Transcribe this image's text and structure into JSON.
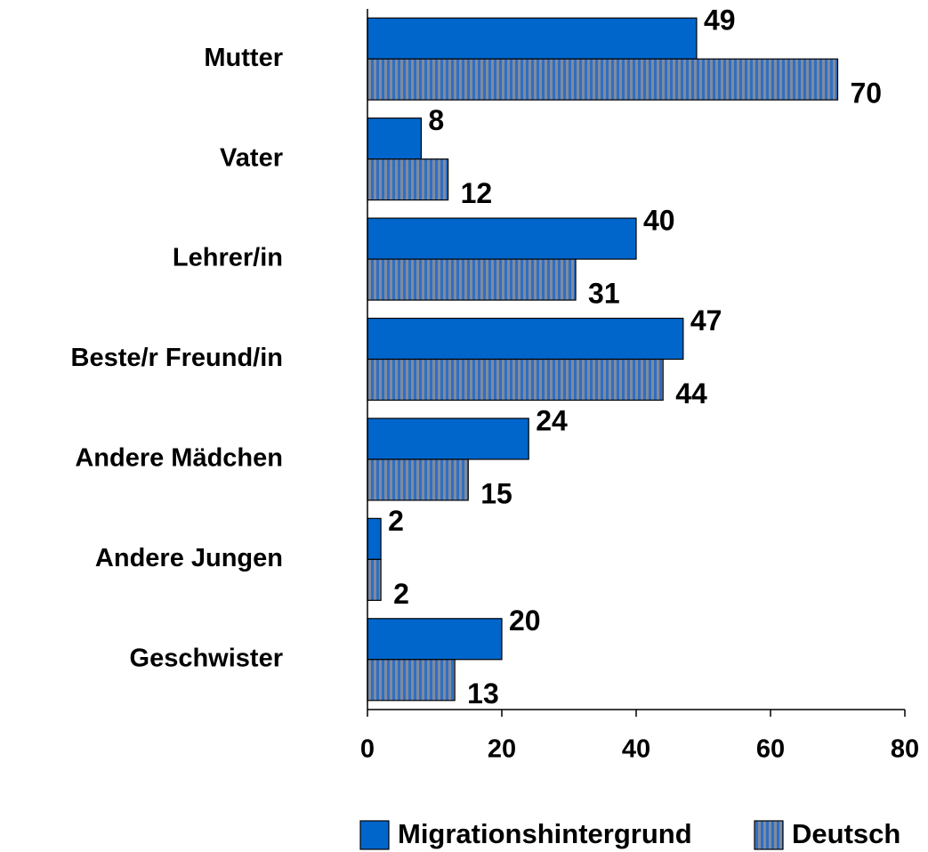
{
  "chart_data": {
    "type": "hbar",
    "categories": [
      "Mutter",
      "Vater",
      "Lehrer/in",
      "Beste/r Freund/in",
      "Andere Mädchen",
      "Andere Jungen",
      "Geschwister"
    ],
    "series": [
      {
        "name": "Migrationshintergrund",
        "color": "#0066cc",
        "values": [
          49,
          8,
          40,
          47,
          24,
          2,
          20
        ]
      },
      {
        "name": "Deutsch",
        "color": "#7f8aa0",
        "values": [
          70,
          12,
          31,
          44,
          15,
          2,
          13
        ]
      }
    ],
    "xlim": [
      0,
      80
    ],
    "xticks": [
      0,
      20,
      40,
      60,
      80
    ],
    "legend": "bottom"
  }
}
